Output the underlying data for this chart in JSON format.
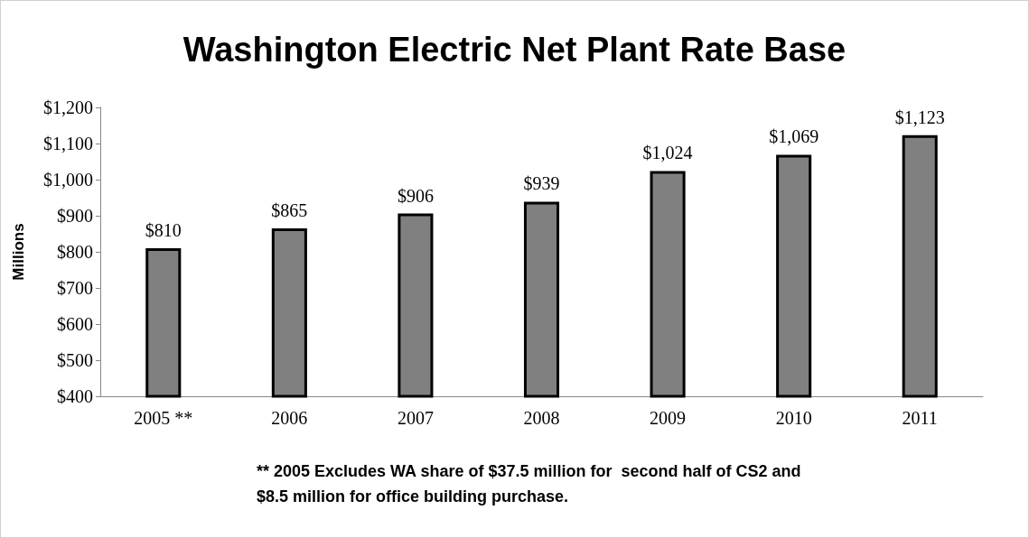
{
  "chart_data": {
    "type": "bar",
    "title": "Washington Electric Net Plant Rate Base",
    "ylabel": "Millions",
    "categories": [
      "2005 **",
      "2006",
      "2007",
      "2008",
      "2009",
      "2010",
      "2011"
    ],
    "values": [
      810,
      865,
      906,
      939,
      1024,
      1069,
      1123
    ],
    "value_labels": [
      "$810",
      "$865",
      "$906",
      "$939",
      "$1,024",
      "$1,069",
      "$1,123"
    ],
    "color": "#808080",
    "ylim": [
      400,
      1200
    ],
    "yticks": [
      {
        "value": 400,
        "label": "$400"
      },
      {
        "value": 500,
        "label": "$500"
      },
      {
        "value": 600,
        "label": "$600"
      },
      {
        "value": 700,
        "label": "$700"
      },
      {
        "value": 800,
        "label": "$800"
      },
      {
        "value": 900,
        "label": "$900"
      },
      {
        "value": 1000,
        "label": "$1,000"
      },
      {
        "value": 1100,
        "label": "$1,100"
      },
      {
        "value": 1200,
        "label": "$1,200"
      }
    ],
    "grid": false,
    "annotations": [
      "** 2005 Excludes WA share of $37.5 million for  second half of CS2 and $8.5 million for office building purchase."
    ]
  }
}
